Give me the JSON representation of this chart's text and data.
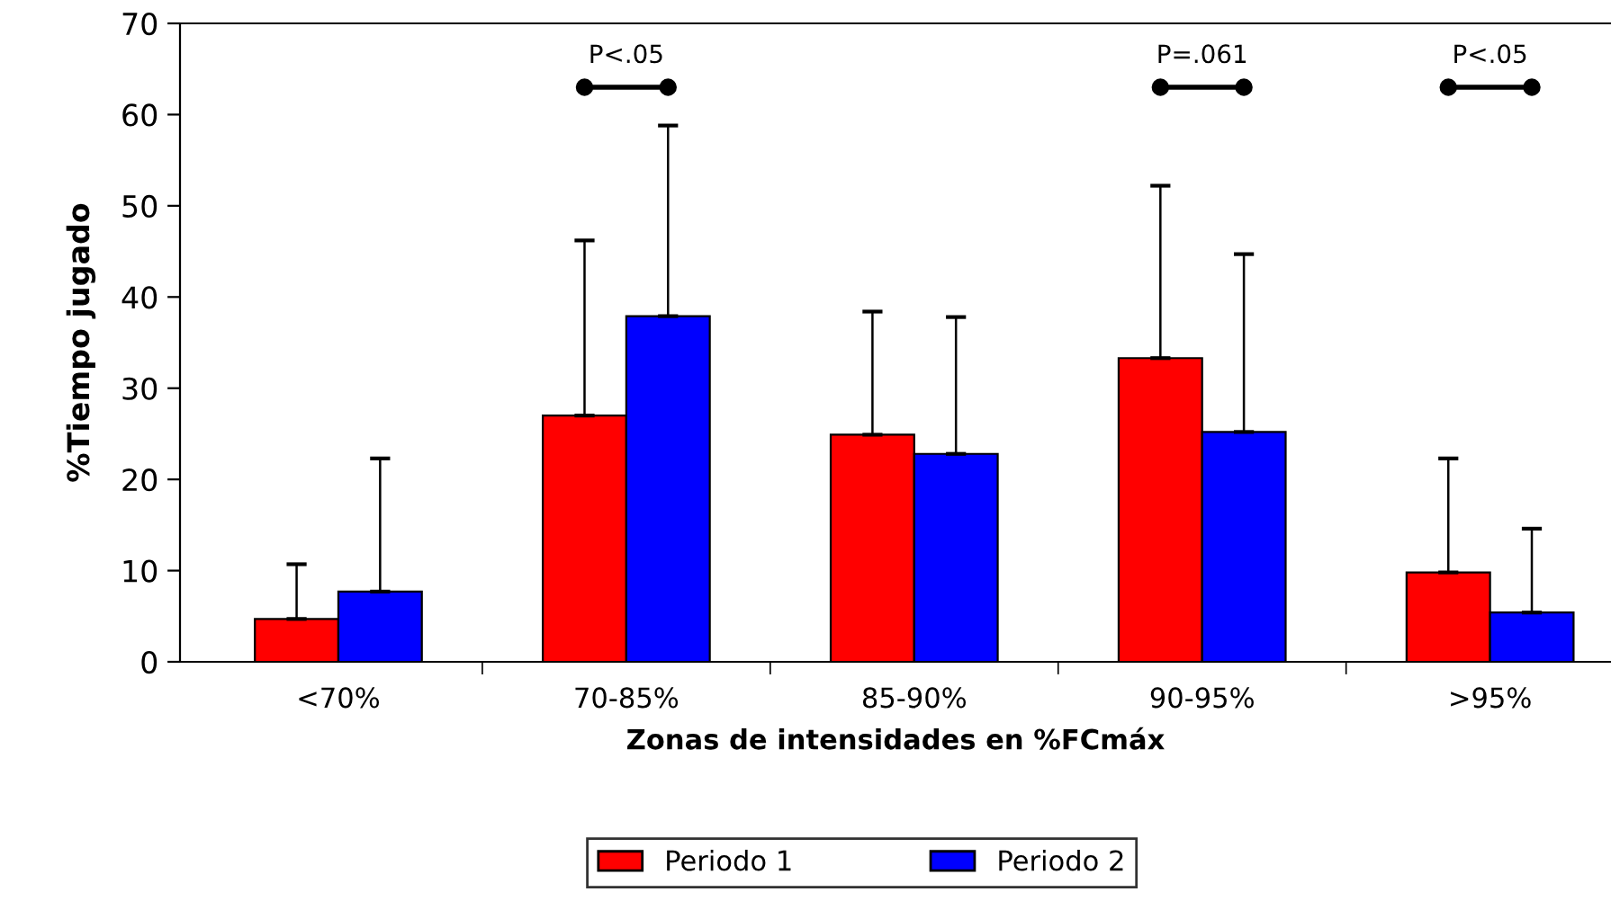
{
  "chart_data": {
    "type": "bar",
    "xlabel": "Zonas de intensidades en %FCmáx",
    "ylabel": "%Tiempo jugado",
    "categories": [
      "<70%",
      "70-85%",
      "85-90%",
      "90-95%",
      ">95%"
    ],
    "series": [
      {
        "name": "Periodo 1",
        "color": "#ff0000",
        "values": [
          4.7,
          27.0,
          24.9,
          33.3,
          9.8
        ],
        "errors": [
          [
            4.7,
            10.7
          ],
          [
            27.0,
            46.2
          ],
          [
            24.9,
            38.4
          ],
          [
            33.3,
            52.2
          ],
          [
            9.8,
            22.3
          ]
        ]
      },
      {
        "name": "Periodo 2",
        "color": "#0000ff",
        "values": [
          7.7,
          37.9,
          22.8,
          25.2,
          5.4
        ],
        "errors": [
          [
            7.7,
            22.3
          ],
          [
            37.9,
            58.8
          ],
          [
            22.8,
            37.8
          ],
          [
            25.2,
            44.7
          ],
          [
            5.4,
            14.6
          ]
        ]
      }
    ],
    "ylim": [
      0,
      70
    ],
    "yticks": [
      0,
      10,
      20,
      30,
      40,
      50,
      60,
      70
    ],
    "annotations": [
      "P<.05",
      "P=.061",
      "P<.05"
    ],
    "legend": "bottom",
    "grid": false
  }
}
